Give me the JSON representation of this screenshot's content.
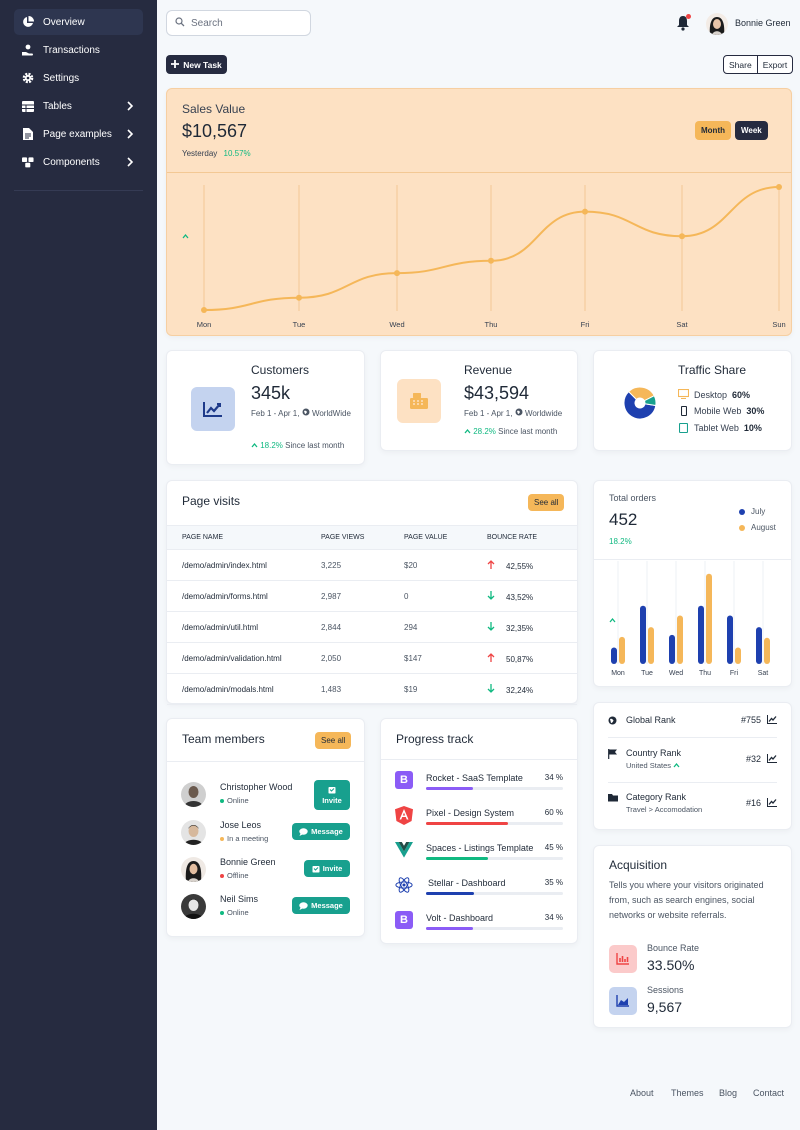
{
  "sidebar": {
    "items": [
      {
        "label": "Overview",
        "icon": "chart-pie-icon",
        "active": true
      },
      {
        "label": "Transactions",
        "icon": "hand-coin-icon"
      },
      {
        "label": "Settings",
        "icon": "gear-icon"
      },
      {
        "label": "Tables",
        "icon": "table-icon",
        "chevron": true
      },
      {
        "label": "Page examples",
        "icon": "document-icon",
        "chevron": true
      },
      {
        "label": "Components",
        "icon": "cubes-icon",
        "chevron": true
      }
    ]
  },
  "topbar": {
    "search_placeholder": "Search",
    "user_name": "Bonnie Green"
  },
  "actions": {
    "new_task": "New Task",
    "share": "Share",
    "export": "Export"
  },
  "sales": {
    "label": "Sales Value",
    "value": "$10,567",
    "period": "Yesterday",
    "change": "10.57%",
    "toggle_month": "Month",
    "toggle_week": "Week"
  },
  "chart_data": {
    "type": "line",
    "x": [
      "Mon",
      "Tue",
      "Wed",
      "Thu",
      "Fri",
      "Sat",
      "Sun"
    ],
    "series": [
      {
        "values": [
          0,
          10,
          30,
          40,
          80,
          60,
          100
        ]
      }
    ],
    "ylim": [
      0,
      100
    ],
    "grid": "vertical",
    "color": "#f5b759"
  },
  "customers": {
    "title": "Customers",
    "value": "345k",
    "range": "Feb 1 - Apr 1,",
    "region": "WorldWide",
    "change": "18.2%",
    "since": "Since last month"
  },
  "revenue": {
    "title": "Revenue",
    "value": "$43,594",
    "range": "Feb 1 - Apr 1,",
    "region": "Worldwide",
    "change": "28.2%",
    "since": "Since last month"
  },
  "traffic": {
    "title": "Traffic Share",
    "items": [
      {
        "label": "Desktop",
        "value": "60%",
        "icon": "desktop-icon"
      },
      {
        "label": "Mobile Web",
        "value": "30%",
        "icon": "mobile-icon"
      },
      {
        "label": "Tablet Web",
        "value": "10%",
        "icon": "tablet-icon"
      }
    ],
    "colors": [
      "#1e40af",
      "#f5b759",
      "#18a08e"
    ]
  },
  "page_visits": {
    "title": "Page visits",
    "see_all": "See all",
    "headers": [
      "PAGE NAME",
      "PAGE VIEWS",
      "PAGE VALUE",
      "BOUNCE RATE"
    ],
    "rows": [
      {
        "name": "/demo/admin/index.html",
        "views": "3,225",
        "value": "$20",
        "bounce": "42,55%",
        "dir": "up"
      },
      {
        "name": "/demo/admin/forms.html",
        "views": "2,987",
        "value": "0",
        "bounce": "43,52%",
        "dir": "down"
      },
      {
        "name": "/demo/admin/util.html",
        "views": "2,844",
        "value": "294",
        "bounce": "32,35%",
        "dir": "down"
      },
      {
        "name": "/demo/admin/validation.html",
        "views": "2,050",
        "value": "$147",
        "bounce": "50,87%",
        "dir": "up"
      },
      {
        "name": "/demo/admin/modals.html",
        "views": "1,483",
        "value": "$19",
        "bounce": "32,24%",
        "dir": "down"
      }
    ]
  },
  "orders": {
    "label": "Total orders",
    "value": "452",
    "change": "18.2%",
    "legend": [
      "July",
      "August"
    ],
    "colors": [
      "#1e40af",
      "#f5b759"
    ],
    "days": [
      "Mon",
      "Tue",
      "Wed",
      "Thu",
      "Fri",
      "Sat"
    ],
    "july": [
      17,
      60,
      30,
      60,
      50,
      38
    ],
    "august": [
      28,
      38,
      50,
      93,
      17,
      27
    ]
  },
  "ranks": [
    {
      "name": "Global Rank",
      "value": "#755",
      "icon": "globe-icon"
    },
    {
      "name": "Country Rank",
      "sub": "United States",
      "value": "#32",
      "icon": "flag-icon"
    },
    {
      "name": "Category Rank",
      "sub": "Travel > Accomodation",
      "value": "#16",
      "icon": "folder-icon"
    }
  ],
  "acquisition": {
    "title": "Acquisition",
    "desc": "Tells you where your visitors originated from, such as search engines, social networks or website referrals.",
    "bounce_label": "Bounce Rate",
    "bounce_value": "33.50%",
    "sessions_label": "Sessions",
    "sessions_value": "9,567"
  },
  "team": {
    "title": "Team members",
    "see_all": "See all",
    "members": [
      {
        "name": "Christopher Wood",
        "status": "Online",
        "status_color": "#10b981",
        "action": "Invite"
      },
      {
        "name": "Jose Leos",
        "status": "In a meeting",
        "status_color": "#f5b759",
        "action": "Message"
      },
      {
        "name": "Bonnie Green",
        "status": "Offline",
        "status_color": "#ef4444",
        "action": "Invite"
      },
      {
        "name": "Neil Sims",
        "status": "Online",
        "status_color": "#10b981",
        "action": "Message"
      }
    ]
  },
  "progress": {
    "title": "Progress track",
    "items": [
      {
        "name": "Rocket - SaaS Template",
        "percent": "34 %",
        "value": 34,
        "color": "#8b5cf6",
        "icon": "bootstrap-icon"
      },
      {
        "name": "Pixel - Design System",
        "percent": "60 %",
        "value": 60,
        "color": "#ef4444",
        "icon": "angular-icon"
      },
      {
        "name": "Spaces - Listings Template",
        "percent": "45 %",
        "value": 45,
        "color": "#10b981",
        "icon": "vue-icon"
      },
      {
        "name": "Stellar - Dashboard",
        "percent": "35 %",
        "value": 35,
        "color": "#1e40af",
        "icon": "react-icon"
      },
      {
        "name": "Volt - Dashboard",
        "percent": "34 %",
        "value": 34,
        "color": "#8b5cf6",
        "icon": "bootstrap-icon"
      }
    ]
  },
  "footer": {
    "links": [
      "About",
      "Themes",
      "Blog",
      "Contact"
    ]
  }
}
